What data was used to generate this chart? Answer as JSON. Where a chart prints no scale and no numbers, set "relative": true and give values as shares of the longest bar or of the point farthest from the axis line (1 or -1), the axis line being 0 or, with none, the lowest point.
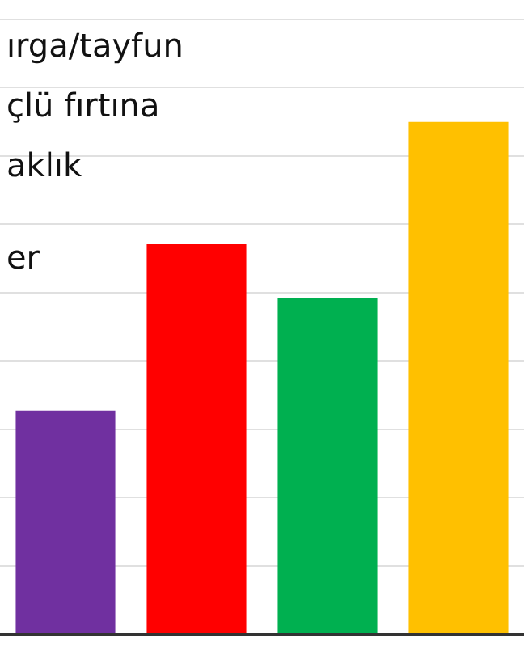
{
  "chart_data": {
    "type": "bar",
    "relative": true,
    "categories": [
      null,
      null,
      null,
      null
    ],
    "values": [
      0.436,
      0.761,
      0.657,
      1
    ],
    "colors": [
      "#7030a0",
      "#ff0000",
      "#00b050",
      "#ffc000"
    ],
    "grid": "y",
    "annotations": [
      "ırga/tayfun",
      "çlü fırtına",
      "aklık",
      "er"
    ]
  }
}
